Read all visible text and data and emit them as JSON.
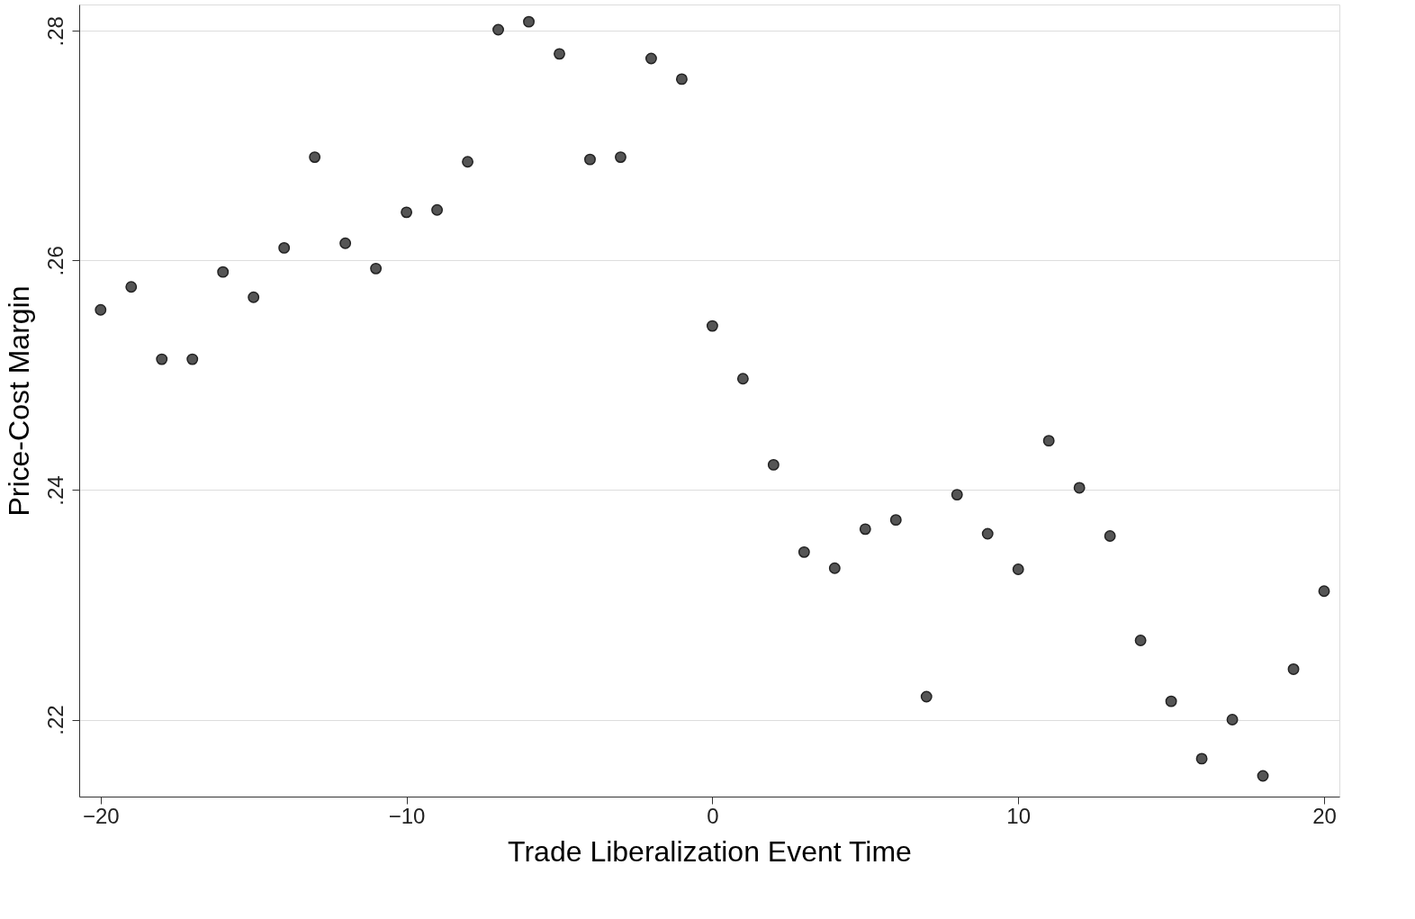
{
  "chart_data": {
    "type": "scatter",
    "xlabel": "Trade Liberalization Event Time",
    "ylabel": "Price-Cost Margin",
    "x": [
      -20,
      -19,
      -18,
      -17,
      -16,
      -15,
      -14,
      -13,
      -12,
      -11,
      -10,
      -9,
      -8,
      -7,
      -6,
      -5,
      -4,
      -3,
      -2,
      -1,
      0,
      1,
      2,
      3,
      4,
      5,
      6,
      7,
      8,
      9,
      10,
      11,
      12,
      13,
      14,
      15,
      16,
      17,
      18,
      19,
      20
    ],
    "series": [
      {
        "color": "#555555",
        "values": [
          0.2557,
          0.2577,
          0.2514,
          0.2514,
          0.259,
          0.2568,
          0.2611,
          0.269,
          0.2615,
          0.2593,
          0.2642,
          0.2644,
          0.2686,
          0.2801,
          0.2808,
          0.278,
          0.2688,
          0.269,
          0.2776,
          0.2758,
          0.2543,
          0.2497,
          0.2422,
          0.2346,
          0.2332,
          0.2366,
          0.2374,
          0.222,
          0.2396,
          0.2362,
          0.2331,
          0.2443,
          0.2402,
          0.236,
          0.2269,
          0.2216,
          0.2166,
          0.22,
          0.2151,
          0.2244,
          0.2312
        ]
      }
    ],
    "xlim": [
      -20.7,
      20.5
    ],
    "ylim": [
      0.2133,
      0.2823
    ],
    "xticks": [
      -20,
      -10,
      0,
      10,
      20
    ],
    "yticks": [
      {
        "value": 0.22,
        "label": ".22"
      },
      {
        "value": 0.24,
        "label": ".24"
      },
      {
        "value": 0.26,
        "label": ".26"
      },
      {
        "value": 0.28,
        "label": ".28"
      }
    ],
    "grid": "y",
    "marker": "circle"
  }
}
